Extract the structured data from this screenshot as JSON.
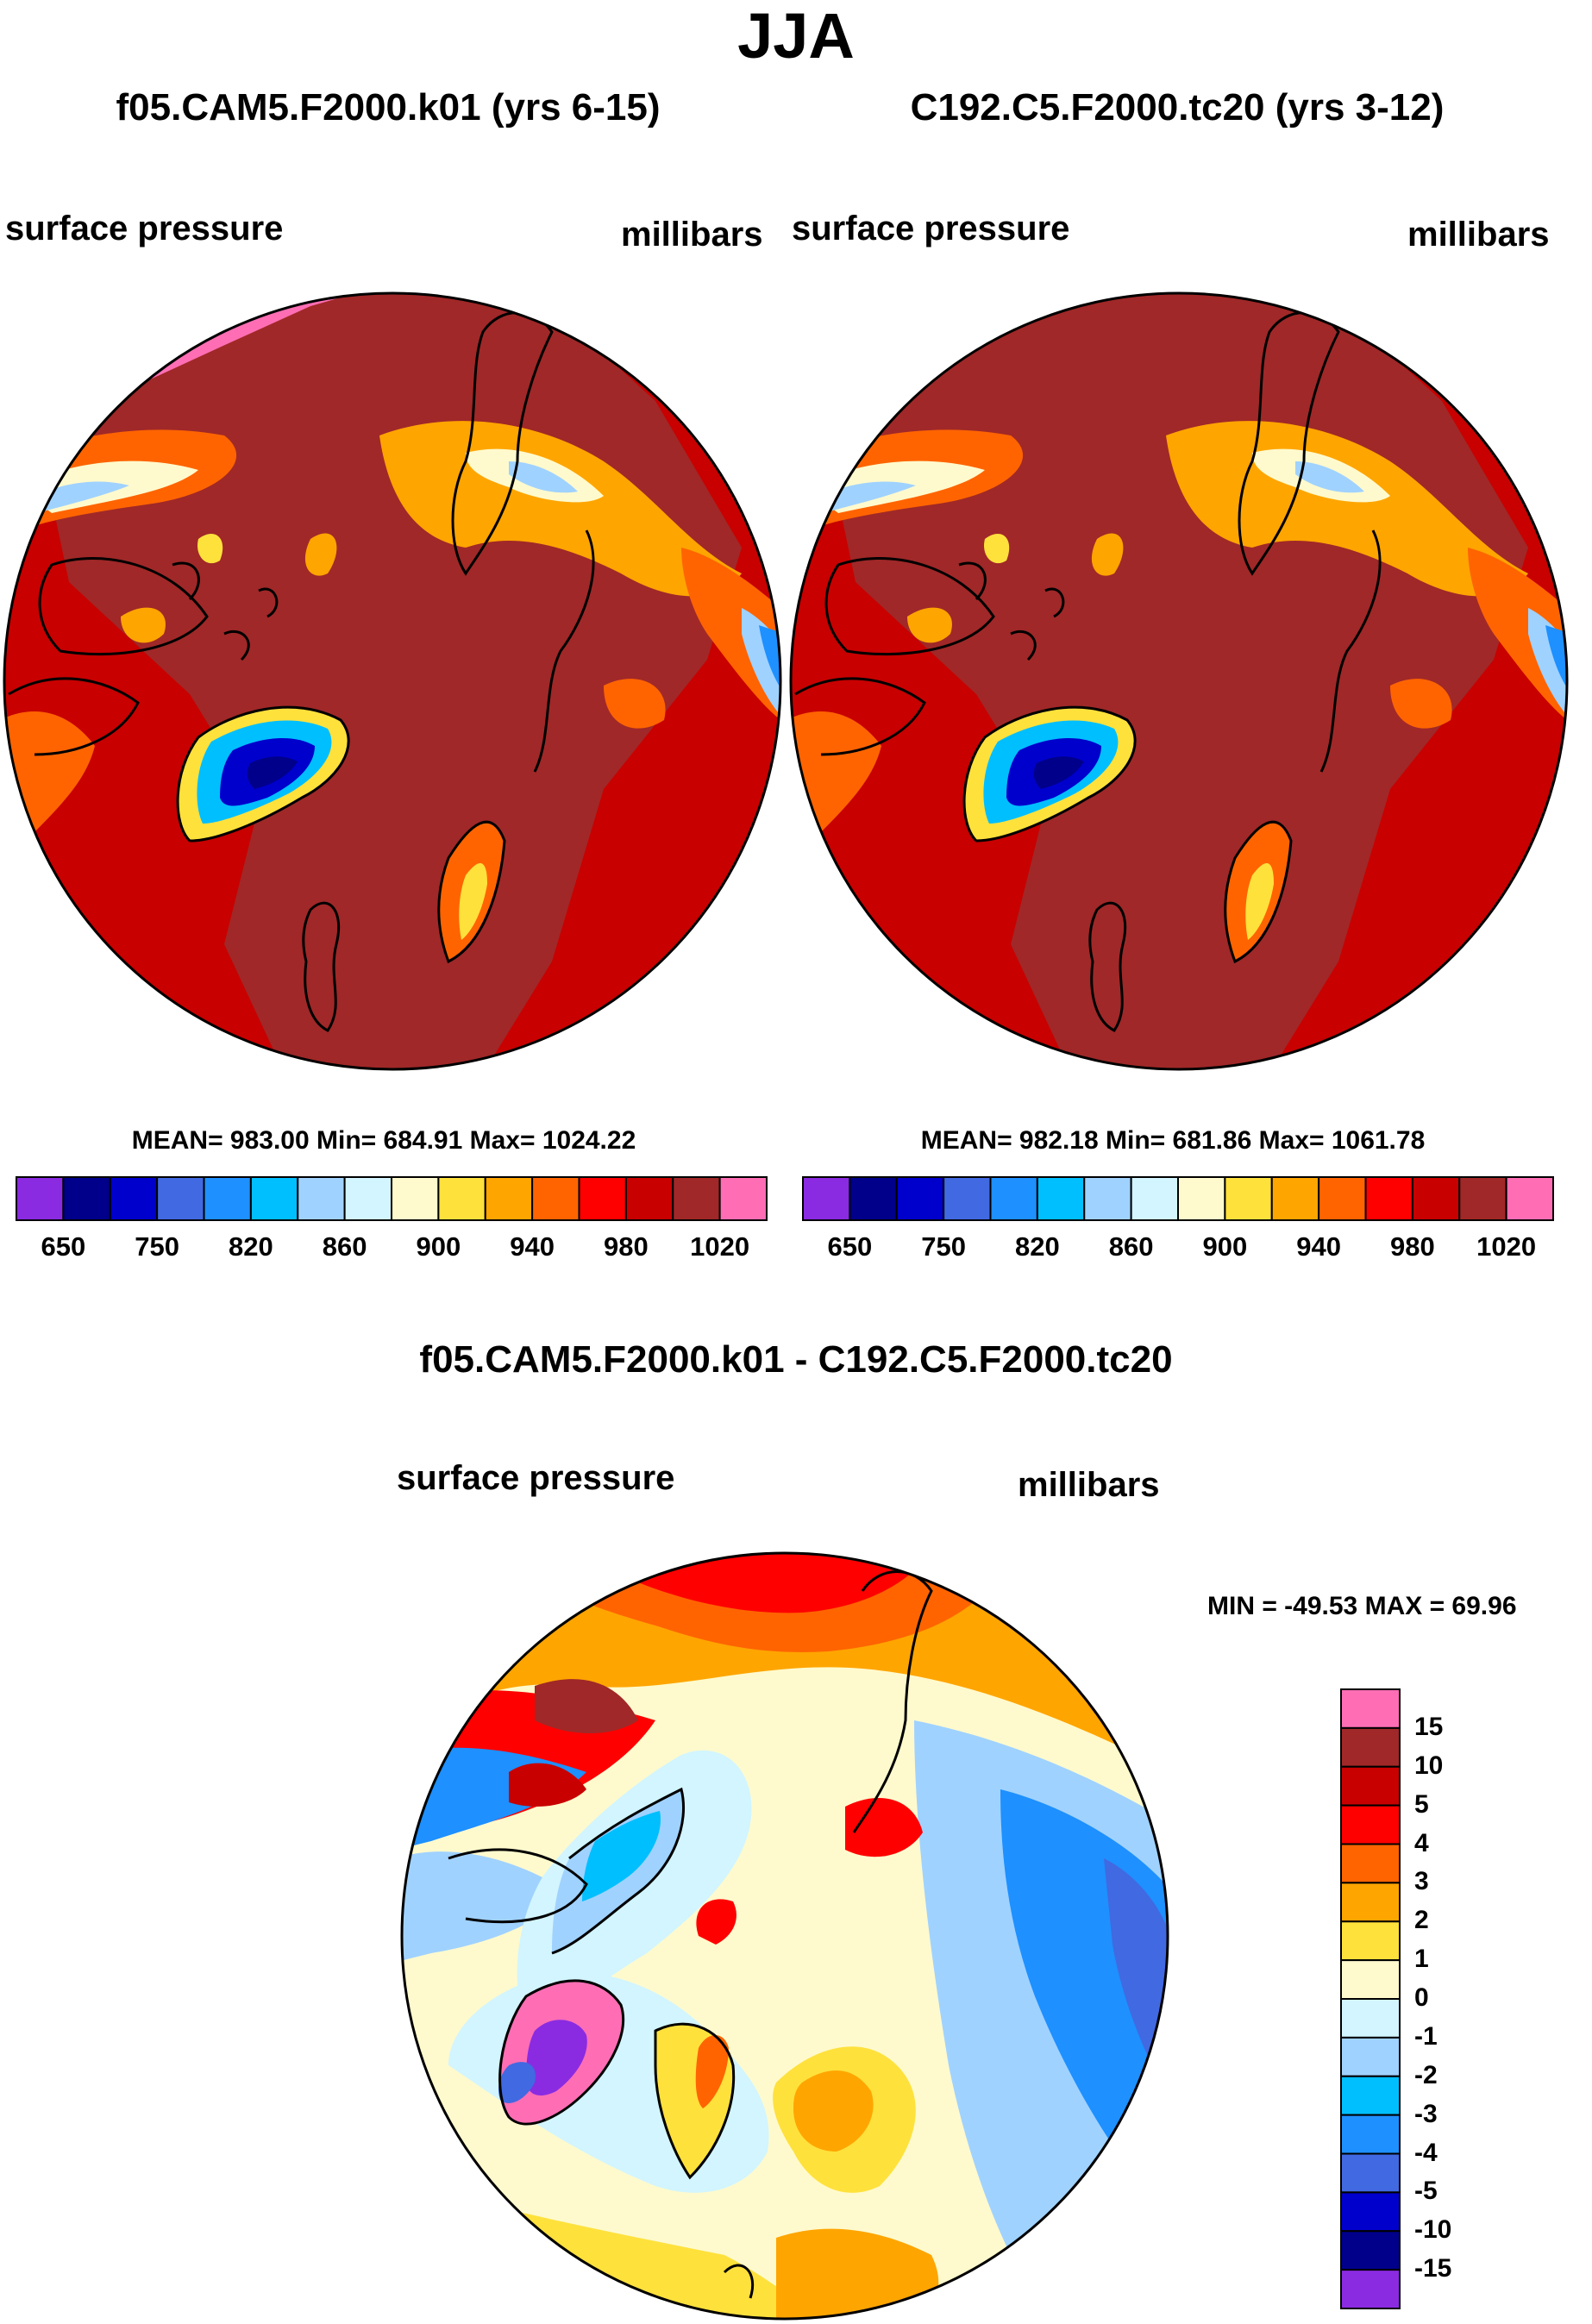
{
  "title": "JJA",
  "panels": [
    {
      "case": "f05.CAM5.F2000.k01 (yrs 6-15)",
      "variable": "surface pressure",
      "units": "millibars",
      "stats": "MEAN= 983.00  Min= 684.91  Max= 1024.22"
    },
    {
      "case": "C192.C5.F2000.tc20 (yrs 3-12)",
      "variable": "surface pressure",
      "units": "millibars",
      "stats": "MEAN= 982.18  Min= 681.86  Max= 1061.78"
    }
  ],
  "difference": {
    "title": "f05.CAM5.F2000.k01 - C192.C5.F2000.tc20",
    "variable": "surface pressure",
    "units": "millibars",
    "stats": "MIN = -49.53 MAX =  69.96"
  },
  "colorbar_top": {
    "colors": [
      "#8a2be2",
      "#00008b",
      "#0000cd",
      "#4169e1",
      "#1e90ff",
      "#00bfff",
      "#a0d2ff",
      "#d2f5ff",
      "#fffacd",
      "#ffe13c",
      "#ffa500",
      "#ff6400",
      "#ff0000",
      "#c80000",
      "#a02828",
      "#ff6eb4"
    ],
    "tick_labels": [
      "650",
      "750",
      "820",
      "860",
      "900",
      "940",
      "980",
      "1020"
    ]
  },
  "colorbar_diff": {
    "colors": [
      "#ff6eb4",
      "#a02828",
      "#c80000",
      "#ff0000",
      "#ff6400",
      "#ffa500",
      "#ffe13c",
      "#fffacd",
      "#d2f5ff",
      "#a0d2ff",
      "#00bfff",
      "#1e90ff",
      "#4169e1",
      "#0000cd",
      "#00008b",
      "#8a2be2"
    ],
    "tick_labels": [
      "15",
      "10",
      "5",
      "4",
      "3",
      "2",
      "1",
      "0",
      "-1",
      "-2",
      "-3",
      "-4",
      "-5",
      "-10",
      "-15"
    ]
  }
}
